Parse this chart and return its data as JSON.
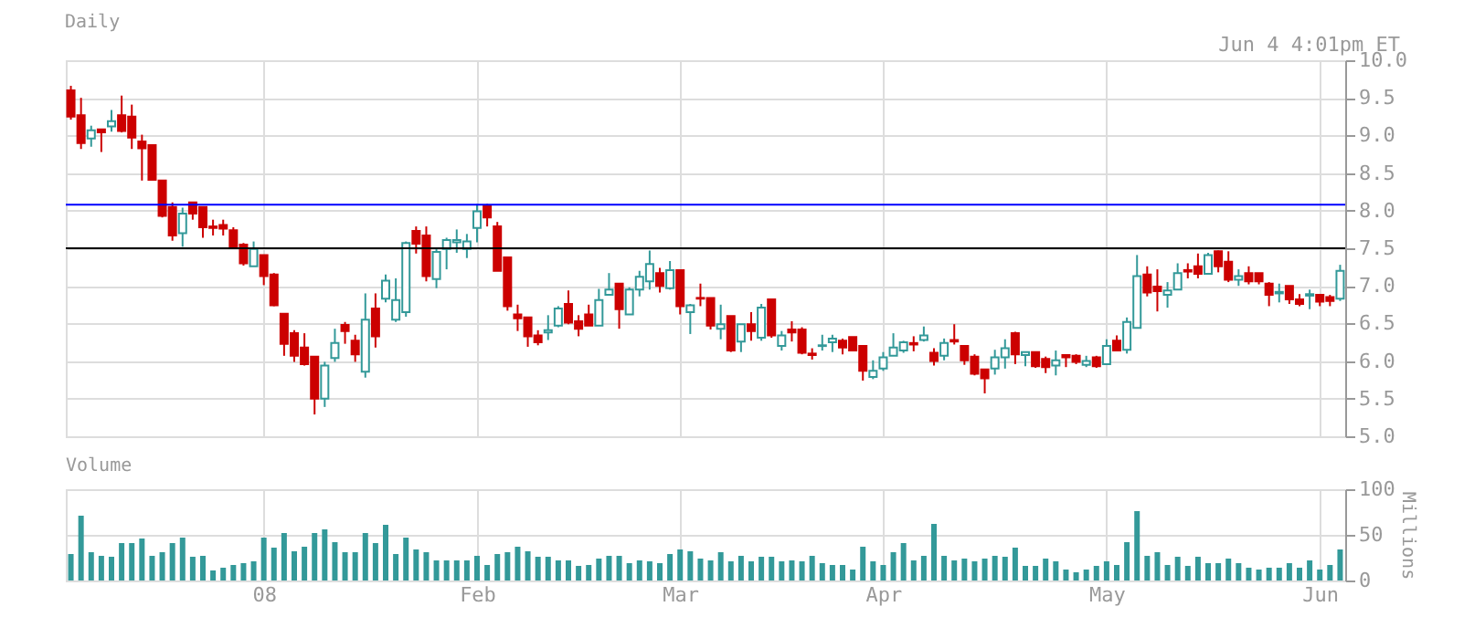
{
  "chart_data": [
    {
      "type": "candlestick",
      "title": "Daily",
      "annotations": [
        "Jun 4 4:01pm ET"
      ],
      "categories": [
        null,
        null,
        null,
        null,
        null,
        null,
        null,
        null,
        null,
        null,
        null,
        null,
        null,
        null,
        null,
        null,
        null,
        null,
        null,
        null,
        null,
        null,
        null,
        null,
        null,
        null,
        null,
        null,
        null,
        null,
        null,
        null,
        null,
        null,
        null,
        null,
        null,
        null,
        null,
        null,
        null,
        null,
        null,
        null,
        null,
        null,
        null,
        null,
        null,
        null,
        null,
        null,
        null,
        null,
        null,
        null,
        null,
        null,
        null,
        null,
        null,
        null,
        null,
        null,
        null,
        null,
        null,
        null,
        null,
        null,
        null,
        null,
        null,
        null,
        null,
        null,
        null,
        null,
        null,
        null,
        null,
        null,
        null,
        null,
        null,
        null,
        null,
        null,
        null,
        null,
        null,
        null,
        null,
        null,
        null,
        null,
        null,
        null,
        null,
        null,
        null,
        null,
        null,
        null,
        null,
        null,
        null,
        null,
        null,
        null,
        null,
        null,
        null,
        null,
        null,
        null,
        null,
        null,
        null,
        null,
        null,
        null,
        null,
        null,
        null,
        null
      ],
      "ohlc": [
        [
          9.6,
          9.66,
          9.21,
          9.25
        ],
        [
          9.27,
          9.5,
          8.82,
          8.9
        ],
        [
          8.96,
          9.13,
          8.85,
          9.07
        ],
        [
          9.08,
          9.08,
          8.78,
          9.04
        ],
        [
          9.12,
          9.34,
          9.05,
          9.19
        ],
        [
          9.27,
          9.53,
          9.04,
          9.06
        ],
        [
          9.25,
          9.41,
          8.82,
          8.97
        ],
        [
          8.92,
          9.01,
          8.4,
          8.83
        ],
        [
          8.87,
          8.87,
          8.4,
          8.41
        ],
        [
          8.4,
          8.41,
          7.91,
          7.93
        ],
        [
          8.05,
          8.11,
          7.6,
          7.67
        ],
        [
          7.7,
          8.04,
          7.52,
          7.96
        ],
        [
          8.11,
          8.11,
          7.88,
          7.96
        ],
        [
          8.05,
          8.05,
          7.64,
          7.78
        ],
        [
          7.79,
          7.88,
          7.67,
          7.77
        ],
        [
          7.81,
          7.88,
          7.67,
          7.76
        ],
        [
          7.74,
          7.78,
          7.49,
          7.51
        ],
        [
          7.55,
          7.57,
          7.27,
          7.3
        ],
        [
          7.26,
          7.59,
          7.26,
          7.49
        ],
        [
          7.41,
          7.41,
          7.01,
          7.13
        ],
        [
          7.15,
          7.17,
          6.73,
          6.74
        ],
        [
          6.63,
          6.63,
          6.07,
          6.23
        ],
        [
          6.37,
          6.41,
          5.99,
          6.07
        ],
        [
          6.18,
          6.37,
          5.94,
          5.96
        ],
        [
          6.06,
          6.06,
          5.29,
          5.5
        ],
        [
          5.5,
          5.99,
          5.39,
          5.94
        ],
        [
          6.04,
          6.43,
          5.99,
          6.24
        ],
        [
          6.48,
          6.52,
          6.23,
          6.4
        ],
        [
          6.27,
          6.35,
          5.99,
          6.09
        ],
        [
          5.86,
          6.9,
          5.78,
          6.55
        ],
        [
          6.7,
          6.9,
          6.18,
          6.33
        ],
        [
          6.83,
          7.15,
          6.78,
          7.07
        ],
        [
          6.55,
          7.1,
          6.52,
          6.81
        ],
        [
          6.65,
          7.59,
          6.59,
          7.57
        ],
        [
          7.73,
          7.79,
          7.43,
          7.56
        ],
        [
          7.67,
          7.79,
          7.06,
          7.13
        ],
        [
          7.09,
          7.5,
          6.97,
          7.45
        ],
        [
          7.49,
          7.64,
          7.22,
          7.61
        ],
        [
          7.58,
          7.75,
          7.44,
          7.61
        ],
        [
          7.49,
          7.69,
          7.37,
          7.59
        ],
        [
          7.77,
          8.09,
          7.58,
          7.99
        ],
        [
          8.06,
          8.09,
          7.79,
          7.91
        ],
        [
          7.79,
          7.85,
          7.2,
          7.2
        ],
        [
          7.38,
          7.38,
          6.67,
          6.73
        ],
        [
          6.62,
          6.75,
          6.4,
          6.57
        ],
        [
          6.58,
          6.58,
          6.19,
          6.33
        ],
        [
          6.34,
          6.41,
          6.21,
          6.25
        ],
        [
          6.38,
          6.61,
          6.28,
          6.41
        ],
        [
          6.47,
          6.73,
          6.45,
          6.7
        ],
        [
          6.76,
          6.94,
          6.49,
          6.51
        ],
        [
          6.53,
          6.61,
          6.33,
          6.43
        ],
        [
          6.62,
          6.75,
          6.47,
          6.47
        ],
        [
          6.47,
          6.96,
          6.47,
          6.81
        ],
        [
          6.88,
          7.17,
          6.88,
          6.95
        ],
        [
          7.03,
          7.03,
          6.43,
          6.69
        ],
        [
          6.62,
          6.98,
          6.62,
          6.95
        ],
        [
          6.95,
          7.2,
          6.86,
          7.12
        ],
        [
          7.06,
          7.47,
          6.95,
          7.29
        ],
        [
          7.17,
          7.24,
          6.91,
          7.0
        ],
        [
          6.97,
          7.33,
          6.95,
          7.21
        ],
        [
          7.21,
          7.21,
          6.62,
          6.73
        ],
        [
          6.65,
          6.76,
          6.36,
          6.74
        ],
        [
          6.84,
          7.03,
          6.73,
          6.83
        ],
        [
          6.84,
          6.84,
          6.42,
          6.47
        ],
        [
          6.43,
          6.75,
          6.29,
          6.49
        ],
        [
          6.6,
          6.6,
          6.12,
          6.14
        ],
        [
          6.26,
          6.49,
          6.12,
          6.49
        ],
        [
          6.49,
          6.65,
          6.27,
          6.4
        ],
        [
          6.31,
          6.76,
          6.27,
          6.71
        ],
        [
          6.82,
          6.82,
          6.31,
          6.34
        ],
        [
          6.2,
          6.4,
          6.14,
          6.34
        ],
        [
          6.42,
          6.53,
          6.26,
          6.38
        ],
        [
          6.42,
          6.45,
          6.09,
          6.11
        ],
        [
          6.1,
          6.17,
          6.02,
          6.08
        ],
        [
          6.2,
          6.35,
          6.14,
          6.21
        ],
        [
          6.25,
          6.35,
          6.12,
          6.3
        ],
        [
          6.27,
          6.3,
          6.09,
          6.18
        ],
        [
          6.32,
          6.32,
          6.14,
          6.14
        ],
        [
          6.2,
          6.2,
          5.74,
          5.87
        ],
        [
          5.79,
          6.01,
          5.76,
          5.87
        ],
        [
          5.9,
          6.12,
          5.87,
          6.05
        ],
        [
          6.07,
          6.37,
          6.07,
          6.18
        ],
        [
          6.14,
          6.27,
          6.11,
          6.25
        ],
        [
          6.24,
          6.33,
          6.13,
          6.22
        ],
        [
          6.28,
          6.46,
          6.26,
          6.34
        ],
        [
          6.11,
          6.17,
          5.94,
          6.0
        ],
        [
          6.07,
          6.3,
          6.01,
          6.24
        ],
        [
          6.28,
          6.49,
          6.22,
          6.26
        ],
        [
          6.2,
          6.2,
          5.95,
          6.01
        ],
        [
          6.06,
          6.09,
          5.81,
          5.83
        ],
        [
          5.89,
          5.89,
          5.57,
          5.77
        ],
        [
          5.9,
          6.15,
          5.82,
          6.05
        ],
        [
          6.05,
          6.29,
          5.9,
          6.17
        ],
        [
          6.37,
          6.39,
          5.96,
          6.09
        ],
        [
          6.08,
          6.12,
          5.93,
          6.12
        ],
        [
          6.12,
          6.12,
          5.91,
          5.93
        ],
        [
          6.03,
          6.06,
          5.84,
          5.92
        ],
        [
          5.94,
          6.14,
          5.81,
          6.01
        ],
        [
          6.08,
          6.08,
          5.92,
          6.05
        ],
        [
          6.07,
          6.09,
          5.96,
          5.99
        ],
        [
          5.95,
          6.07,
          5.92,
          6.0
        ],
        [
          6.05,
          6.07,
          5.91,
          5.93
        ],
        [
          5.96,
          6.29,
          5.96,
          6.2
        ],
        [
          6.27,
          6.34,
          6.14,
          6.14
        ],
        [
          6.15,
          6.58,
          6.1,
          6.52
        ],
        [
          6.44,
          7.41,
          6.44,
          7.13
        ],
        [
          7.15,
          7.26,
          6.86,
          6.91
        ],
        [
          6.99,
          7.22,
          6.66,
          6.93
        ],
        [
          6.88,
          7.05,
          6.71,
          6.94
        ],
        [
          6.95,
          7.3,
          6.95,
          7.17
        ],
        [
          7.21,
          7.3,
          7.1,
          7.19
        ],
        [
          7.26,
          7.43,
          7.1,
          7.16
        ],
        [
          7.16,
          7.44,
          7.16,
          7.41
        ],
        [
          7.46,
          7.47,
          7.18,
          7.26
        ],
        [
          7.32,
          7.46,
          7.05,
          7.08
        ],
        [
          7.08,
          7.22,
          7.0,
          7.13
        ],
        [
          7.17,
          7.26,
          7.02,
          7.06
        ],
        [
          7.17,
          7.17,
          7.02,
          7.06
        ],
        [
          7.03,
          7.05,
          6.73,
          6.88
        ],
        [
          6.9,
          7.03,
          6.78,
          6.92
        ],
        [
          7.0,
          7.0,
          6.76,
          6.82
        ],
        [
          6.82,
          6.89,
          6.73,
          6.76
        ],
        [
          6.87,
          6.95,
          6.69,
          6.89
        ],
        [
          6.88,
          6.88,
          6.73,
          6.79
        ],
        [
          6.85,
          6.88,
          6.73,
          6.8
        ],
        [
          6.83,
          7.28,
          6.8,
          7.2
        ]
      ],
      "colors": [
        "#cc0000",
        "#cc0000",
        "#339999",
        "#cc0000",
        "#339999",
        "#cc0000",
        "#cc0000",
        "#cc0000",
        "#cc0000",
        "#cc0000",
        "#cc0000",
        "#339999",
        "#cc0000",
        "#cc0000",
        "#cc0000",
        "#cc0000",
        "#cc0000",
        "#cc0000",
        "#339999",
        "#cc0000",
        "#cc0000",
        "#cc0000",
        "#cc0000",
        "#cc0000",
        "#cc0000",
        "#339999",
        "#339999",
        "#cc0000",
        "#cc0000",
        "#339999",
        "#cc0000",
        "#339999",
        "#339999",
        "#339999",
        "#cc0000",
        "#cc0000",
        "#339999",
        "#339999",
        "#339999",
        "#339999",
        "#339999",
        "#cc0000",
        "#cc0000",
        "#cc0000",
        "#cc0000",
        "#cc0000",
        "#cc0000",
        "#339999",
        "#339999",
        "#cc0000",
        "#cc0000",
        "#cc0000",
        "#339999",
        "#339999",
        "#cc0000",
        "#339999",
        "#339999",
        "#339999",
        "#cc0000",
        "#339999",
        "#cc0000",
        "#339999",
        "#cc0000",
        "#cc0000",
        "#339999",
        "#cc0000",
        "#339999",
        "#cc0000",
        "#339999",
        "#cc0000",
        "#339999",
        "#cc0000",
        "#cc0000",
        "#cc0000",
        "#339999",
        "#339999",
        "#cc0000",
        "#cc0000",
        "#cc0000",
        "#339999",
        "#339999",
        "#339999",
        "#339999",
        "#cc0000",
        "#339999",
        "#cc0000",
        "#339999",
        "#cc0000",
        "#cc0000",
        "#cc0000",
        "#cc0000",
        "#339999",
        "#339999",
        "#cc0000",
        "#339999",
        "#cc0000",
        "#cc0000",
        "#339999",
        "#cc0000",
        "#cc0000",
        "#339999",
        "#cc0000",
        "#339999",
        "#cc0000",
        "#339999",
        "#339999",
        "#cc0000",
        "#cc0000",
        "#339999",
        "#339999",
        "#cc0000",
        "#cc0000",
        "#339999",
        "#cc0000",
        "#cc0000",
        "#339999",
        "#cc0000",
        "#cc0000",
        "#cc0000",
        "#339999",
        "#cc0000",
        "#cc0000",
        "#339999",
        "#cc0000",
        "#cc0000",
        "#339999"
      ],
      "ylim": [
        5,
        10
      ],
      "yticks": [
        {
          "value": 5,
          "label": "5.0"
        },
        5.5,
        {
          "value": 6,
          "label": "6.0"
        },
        6.5,
        {
          "value": 7,
          "label": "7.0"
        },
        7.5,
        {
          "value": 8,
          "label": "8.0"
        },
        8.5,
        {
          "value": 9,
          "label": "9.0"
        },
        9.5,
        {
          "value": 10,
          "label": "10.0"
        }
      ],
      "ref_lines": [
        {
          "axis": "y",
          "value": 8.08,
          "color": "#0000ff"
        },
        {
          "axis": "y",
          "value": 7.5,
          "color": "#000000"
        }
      ],
      "tick_labels": "y",
      "grid": true
    },
    {
      "type": "bar",
      "title": "Volume",
      "ylabel": "Millions",
      "color": "#339999",
      "categories": [
        null,
        null,
        null,
        null,
        null,
        null,
        null,
        null,
        null,
        null,
        null,
        null,
        null,
        null,
        null,
        null,
        null,
        null,
        null,
        "08",
        null,
        null,
        null,
        null,
        null,
        null,
        null,
        null,
        null,
        null,
        null,
        null,
        null,
        null,
        null,
        null,
        null,
        null,
        null,
        null,
        "Feb",
        null,
        null,
        null,
        null,
        null,
        null,
        null,
        null,
        null,
        null,
        null,
        null,
        null,
        null,
        null,
        null,
        null,
        null,
        null,
        "Mar",
        null,
        null,
        null,
        null,
        null,
        null,
        null,
        null,
        null,
        null,
        null,
        null,
        null,
        null,
        null,
        null,
        null,
        null,
        null,
        "Apr",
        null,
        null,
        null,
        null,
        null,
        null,
        null,
        null,
        null,
        null,
        null,
        null,
        null,
        null,
        null,
        null,
        null,
        null,
        null,
        null,
        null,
        "May",
        null,
        null,
        null,
        null,
        null,
        null,
        null,
        null,
        null,
        null,
        null,
        null,
        null,
        null,
        null,
        null,
        null,
        null,
        null,
        null,
        "Jun",
        null,
        null
      ],
      "values": [
        29,
        71,
        31,
        27,
        26,
        41,
        41,
        46,
        27,
        31,
        41,
        47,
        26,
        27,
        11,
        14,
        17,
        19,
        21,
        47,
        36,
        52,
        32,
        37,
        52,
        56,
        42,
        31,
        31,
        52,
        41,
        61,
        29,
        47,
        34,
        31,
        22,
        22,
        22,
        22,
        27,
        17,
        29,
        31,
        37,
        32,
        26,
        26,
        22,
        22,
        16,
        17,
        24,
        27,
        27,
        19,
        22,
        21,
        19,
        29,
        34,
        32,
        24,
        22,
        31,
        21,
        27,
        21,
        26,
        26,
        21,
        22,
        21,
        27,
        19,
        17,
        17,
        12,
        37,
        21,
        17,
        31,
        41,
        22,
        27,
        62,
        27,
        22,
        24,
        21,
        24,
        27,
        26,
        36,
        16,
        16,
        24,
        21,
        12,
        9,
        12,
        16,
        21,
        17,
        42,
        76,
        27,
        31,
        17,
        26,
        16,
        26,
        19,
        19,
        24,
        19,
        14,
        12,
        14,
        14,
        19,
        14,
        22,
        12,
        17,
        34
      ],
      "ylim": [
        0,
        100
      ],
      "yticks": [
        0,
        50,
        100
      ],
      "grid": true
    }
  ]
}
